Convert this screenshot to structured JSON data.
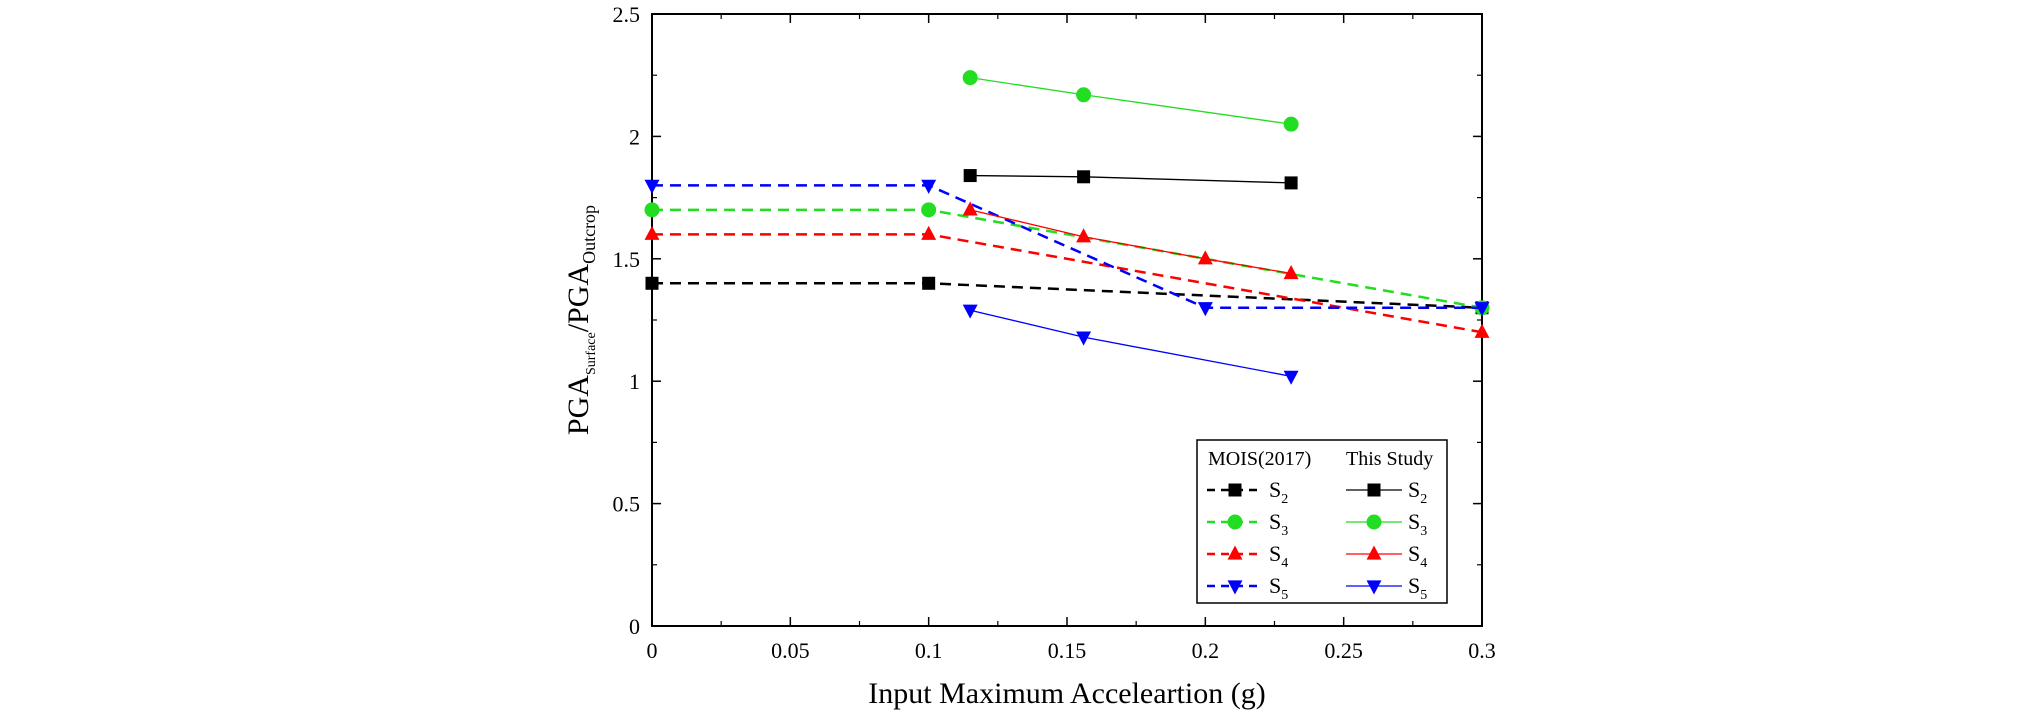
{
  "chart_data": {
    "type": "line",
    "title": "",
    "xlabel": "Input Maximum Acceleartion (g)",
    "ylabel": {
      "base1": "PGA",
      "sub1": "Surface",
      "sep": "/PGA",
      "sub2": "Outcrop"
    },
    "xlim": [
      0,
      0.3
    ],
    "ylim": [
      0,
      2.5
    ],
    "xticks": [
      0,
      0.05,
      0.1,
      0.15,
      0.2,
      0.25,
      0.3
    ],
    "xtick_labels": [
      "0",
      "0.05",
      "0.1",
      "0.15",
      "0.2",
      "0.25",
      "0.3"
    ],
    "yticks": [
      0,
      0.5,
      1,
      1.5,
      2,
      2.5
    ],
    "ytick_labels": [
      "0",
      "0.5",
      "1",
      "1.5",
      "2",
      "2.5"
    ],
    "legend": {
      "position": "lower-right",
      "group_titles": [
        "MOIS(2017)",
        "This Study"
      ]
    },
    "series": [
      {
        "name": "S",
        "sub": "2",
        "group": "MOIS(2017)",
        "style": "dashed",
        "marker": "square",
        "color": "#000000",
        "x": [
          0,
          0.1,
          0.3
        ],
        "y": [
          1.4,
          1.4,
          1.3
        ]
      },
      {
        "name": "S",
        "sub": "3",
        "group": "MOIS(2017)",
        "style": "dashed",
        "marker": "circle",
        "color": "#22dd22",
        "x": [
          0,
          0.1,
          0.3
        ],
        "y": [
          1.7,
          1.7,
          1.3
        ]
      },
      {
        "name": "S",
        "sub": "4",
        "group": "MOIS(2017)",
        "style": "dashed",
        "marker": "triangle-up",
        "color": "#ff0000",
        "x": [
          0,
          0.1,
          0.3
        ],
        "y": [
          1.6,
          1.6,
          1.2
        ]
      },
      {
        "name": "S",
        "sub": "5",
        "group": "MOIS(2017)",
        "style": "dashed",
        "marker": "triangle-down",
        "color": "#0000ff",
        "x": [
          0,
          0.1,
          0.2,
          0.3
        ],
        "y": [
          1.8,
          1.8,
          1.3,
          1.3
        ]
      },
      {
        "name": "S",
        "sub": "2",
        "group": "This Study",
        "style": "solid",
        "marker": "square",
        "color": "#000000",
        "x": [
          0.115,
          0.156,
          0.231
        ],
        "y": [
          1.84,
          1.835,
          1.81
        ]
      },
      {
        "name": "S",
        "sub": "3",
        "group": "This Study",
        "style": "solid",
        "marker": "circle",
        "color": "#22dd22",
        "x": [
          0.115,
          0.156,
          0.231
        ],
        "y": [
          2.24,
          2.17,
          2.05
        ]
      },
      {
        "name": "S",
        "sub": "4",
        "group": "This Study",
        "style": "solid",
        "marker": "triangle-up",
        "color": "#ff0000",
        "x": [
          0.115,
          0.156,
          0.2,
          0.231
        ],
        "y": [
          1.7,
          1.59,
          1.5,
          1.44
        ]
      },
      {
        "name": "S",
        "sub": "5",
        "group": "This Study",
        "style": "solid",
        "marker": "triangle-down",
        "color": "#0000ff",
        "x": [
          0.115,
          0.156,
          0.231
        ],
        "y": [
          1.29,
          1.18,
          1.02
        ]
      }
    ]
  }
}
